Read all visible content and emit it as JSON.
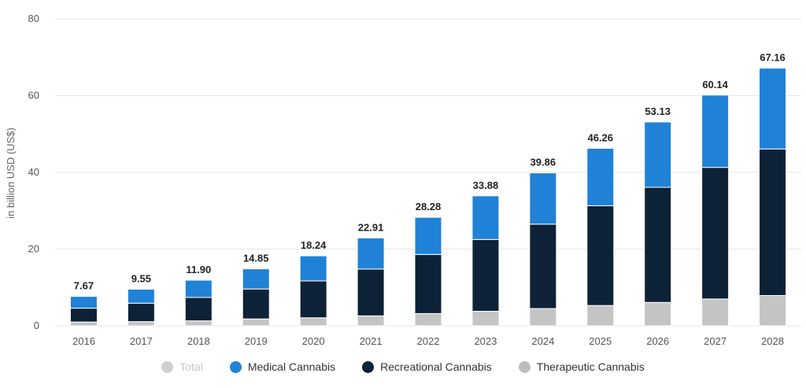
{
  "chart_data": {
    "type": "bar",
    "stacked": true,
    "categories": [
      "2016",
      "2017",
      "2018",
      "2019",
      "2020",
      "2021",
      "2022",
      "2023",
      "2024",
      "2025",
      "2026",
      "2027",
      "2028"
    ],
    "ylabel": "in billion USD (US$)",
    "ylim": [
      0,
      80
    ],
    "yticks": [
      0,
      20,
      40,
      60,
      80
    ],
    "grid": true,
    "legend_position": "bottom",
    "totals": [
      7.67,
      9.55,
      11.9,
      14.85,
      18.24,
      22.91,
      28.28,
      33.88,
      39.86,
      46.26,
      53.13,
      60.14,
      67.16
    ],
    "total_labels": [
      "7.67",
      "9.55",
      "11.90",
      "14.85",
      "18.24",
      "22.91",
      "28.28",
      "33.88",
      "39.86",
      "46.26",
      "53.13",
      "60.14",
      "67.16"
    ],
    "series": [
      {
        "name": "Therapeutic Cannabis",
        "color": "#c4c4c4",
        "values": [
          1.0,
          1.1,
          1.3,
          1.8,
          2.1,
          2.6,
          3.2,
          3.8,
          4.5,
          5.3,
          6.1,
          7.0,
          7.9
        ]
      },
      {
        "name": "Recreational Cannabis",
        "color": "#0d2137",
        "values": [
          3.6,
          4.8,
          6.1,
          7.8,
          9.6,
          12.2,
          15.4,
          18.7,
          22.0,
          26.0,
          30.0,
          34.3,
          38.2
        ]
      },
      {
        "name": "Medical Cannabis",
        "color": "#1f82d6",
        "values": [
          3.07,
          3.65,
          4.5,
          5.25,
          6.54,
          8.11,
          9.68,
          11.38,
          13.36,
          14.96,
          17.03,
          18.84,
          21.06
        ]
      }
    ]
  },
  "legend": {
    "total": {
      "label": "Total",
      "color": "#d0d0d0"
    },
    "medical": {
      "label": "Medical Cannabis",
      "color": "#1f82d6"
    },
    "recreational": {
      "label": "Recreational Cannabis",
      "color": "#0d2137"
    },
    "therapeutic": {
      "label": "Therapeutic Cannabis",
      "color": "#bdbdbd"
    }
  }
}
